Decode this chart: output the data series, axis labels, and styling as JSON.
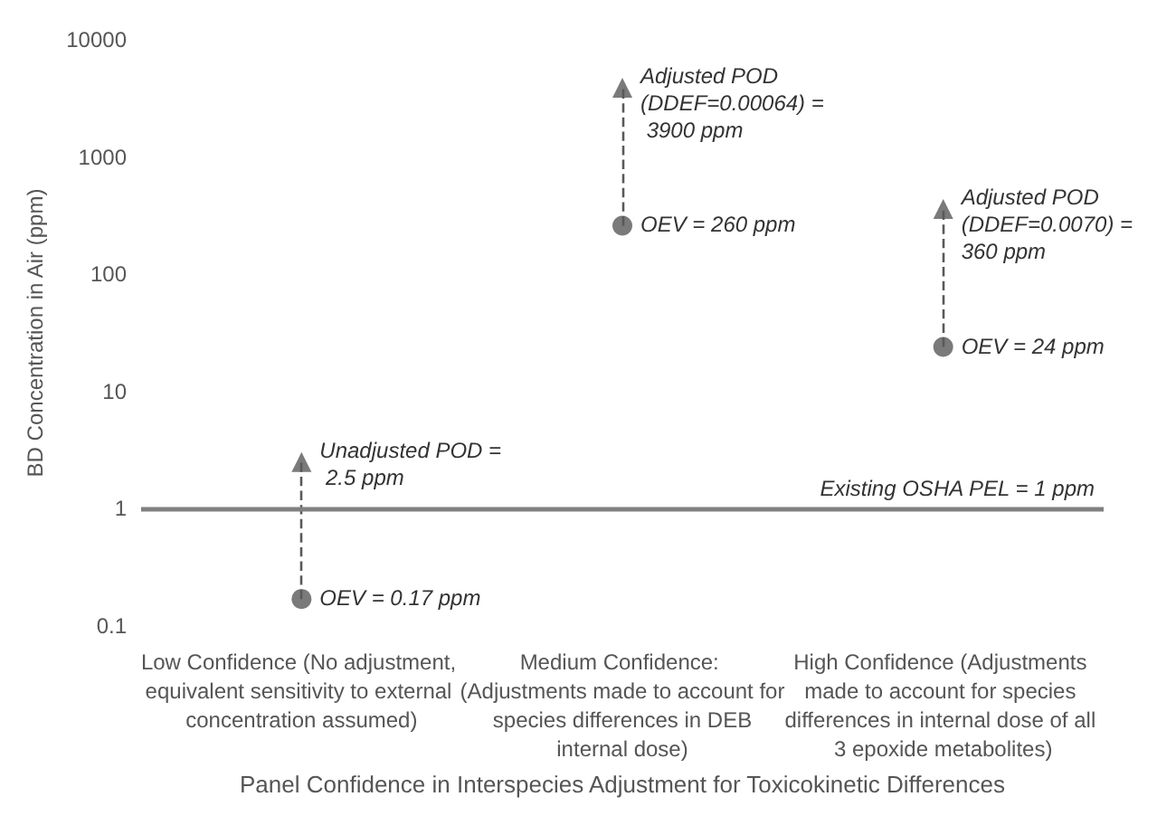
{
  "chart_data": {
    "type": "scatter",
    "ylabel": "BD Concentration in Air (ppm)",
    "xlabel": "Panel Confidence in Interspecies Adjustment for Toxicokinetic Differences",
    "categories": [
      "Low Confidence (No adjustment, equivalent sensitivity to external concentration assumed)",
      "Medium Confidence: (Adjustments made to account for species differences in DEB internal dose)",
      "High Confidence (Adjustments made to account for species differences in internal dose of all 3 epoxide metabolites)"
    ],
    "series": [
      {
        "color": "#595959",
        "marker": "circle",
        "values": [
          0.17,
          260,
          24
        ]
      },
      {
        "color": "#595959",
        "marker": "triangle",
        "values": [
          2.5,
          3900,
          360
        ]
      }
    ],
    "log": "y",
    "ylim": [
      0.1,
      10000
    ],
    "yticks": [
      0.1,
      1,
      10,
      100,
      1000,
      10000
    ],
    "grid": false,
    "ref_lines": [
      {
        "axis": "y",
        "value": 1,
        "label": "Existing OSHA PEL = 1 ppm",
        "color": "#808080"
      }
    ],
    "annotations": [
      {
        "text": "OEV = 0.17 ppm",
        "x": "Low Confidence (No adjustment, equivalent sensitivity to external concentration assumed)",
        "y": 0.17
      },
      {
        "text": "Unadjusted POD = 2.5 ppm",
        "x": "Low Confidence (No adjustment, equivalent sensitivity to external concentration assumed)",
        "y": 2.5
      },
      {
        "text": "OEV = 260 ppm",
        "x": "Medium Confidence: (Adjustments made to account for species differences in DEB internal dose)",
        "y": 260
      },
      {
        "text": "Adjusted POD (DDEF=0.00064) = 3900 ppm",
        "x": "Medium Confidence: (Adjustments made to account for species differences in DEB internal dose)",
        "y": 3900
      },
      {
        "text": "OEV = 24 ppm",
        "x": "High Confidence (Adjustments made to account for species differences in internal dose of all 3 epoxide metabolites)",
        "y": 24
      },
      {
        "text": "Adjusted POD (DDEF=0.0070) = 360 ppm",
        "x": "High Confidence (Adjustments made to account for species differences in internal dose of all 3 epoxide metabolites)",
        "y": 360
      }
    ]
  }
}
